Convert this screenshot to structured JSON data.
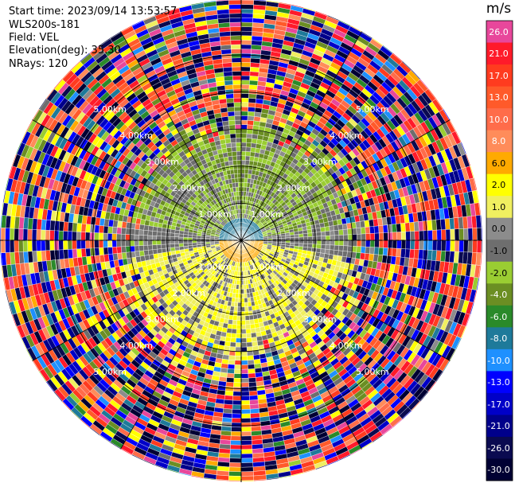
{
  "header": {
    "start_time": "Start time: 2023/09/14 13:53:57",
    "instrument": "WLS200s-181",
    "field": "Field: VEL",
    "elevation": "Elevation(deg): 35.30",
    "nrays": "NRays: 120"
  },
  "colorbar": {
    "unit": "m/s",
    "entries": [
      {
        "label": "26.0",
        "color": "#e8479b"
      },
      {
        "label": "21.0",
        "color": "#ff1a2a"
      },
      {
        "label": "17.0",
        "color": "#ff3b1f"
      },
      {
        "label": "13.0",
        "color": "#ff5a2a"
      },
      {
        "label": "10.0",
        "color": "#ff6c4a"
      },
      {
        "label": "8.0",
        "color": "#ff8c5a"
      },
      {
        "label": "6.0",
        "color": "#ffaa00"
      },
      {
        "label": "2.0",
        "color": "#ffff00"
      },
      {
        "label": "1.0",
        "color": "#f0ef60"
      },
      {
        "label": "0.0",
        "color": "#8c8c8c"
      },
      {
        "label": "-1.0",
        "color": "#6e6e6e"
      },
      {
        "label": "-2.0",
        "color": "#9acd32"
      },
      {
        "label": "-4.0",
        "color": "#6b8e23"
      },
      {
        "label": "-6.0",
        "color": "#2a8a2a"
      },
      {
        "label": "-8.0",
        "color": "#1e7a9a"
      },
      {
        "label": "-10.0",
        "color": "#1e90ff"
      },
      {
        "label": "-13.0",
        "color": "#0000ff"
      },
      {
        "label": "-17.0",
        "color": "#0000c8"
      },
      {
        "label": "-21.0",
        "color": "#00008b"
      },
      {
        "label": "-26.0",
        "color": "#0a0a50"
      },
      {
        "label": "-30.0",
        "color": "#000033"
      }
    ]
  },
  "chart_data": {
    "type": "heatmap",
    "projection": "polar",
    "field": "VEL",
    "units": "m/s",
    "nrays": 120,
    "range_rings_km": [
      1.0,
      2.0,
      3.0,
      4.0,
      5.0
    ],
    "ring_labels": [
      "1.00km",
      "2.00km",
      "3.00km",
      "4.00km",
      "5.00km"
    ],
    "max_range_km": 6.5,
    "near_field": {
      "north_side_velocity_ms": -2.0,
      "south_side_velocity_ms": 2.0,
      "center_north_velocity_ms": -6.0,
      "center_south_velocity_ms": 6.0
    },
    "far_field_description": "noise"
  }
}
